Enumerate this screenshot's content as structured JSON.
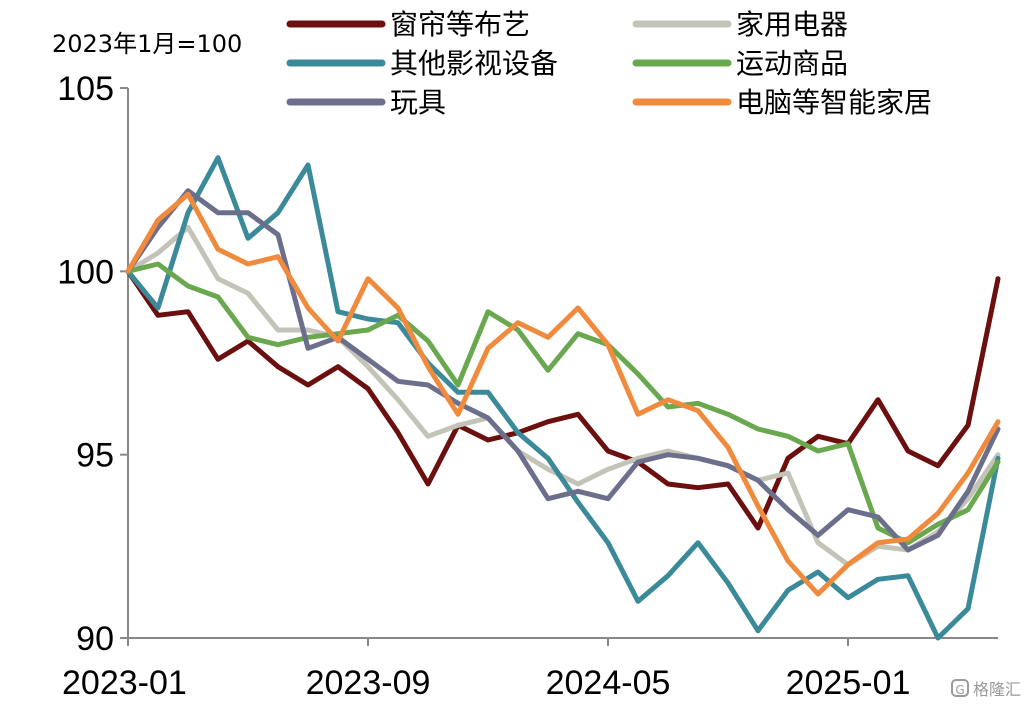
{
  "chart_data": {
    "type": "line",
    "unit_note": "2023年1月=100",
    "ylim": [
      90,
      105
    ],
    "yticks": [
      90,
      95,
      100,
      105
    ],
    "x_tick_labels": [
      "2023-01",
      "2023-09",
      "2024-05",
      "2025-01"
    ],
    "x_tick_indices": [
      0,
      8,
      16,
      24
    ],
    "n_points": 30,
    "legend_position": "top",
    "grid": false,
    "series": [
      {
        "name": "窗帘等布艺",
        "color": "#6b0f0f",
        "values": [
          100,
          98.8,
          98.9,
          97.6,
          98.1,
          97.4,
          96.9,
          97.4,
          96.8,
          95.6,
          94.2,
          95.8,
          95.4,
          95.6,
          95.9,
          96.1,
          95.1,
          94.8,
          94.2,
          94.1,
          94.2,
          93.0,
          94.9,
          95.5,
          95.3,
          96.5,
          95.1,
          94.7,
          95.8,
          99.8
        ]
      },
      {
        "name": "家用电器",
        "color": "#c4c3b8",
        "values": [
          100,
          100.5,
          101.2,
          99.8,
          99.4,
          98.4,
          98.4,
          98.2,
          97.4,
          96.5,
          95.5,
          95.8,
          96.0,
          95.1,
          94.6,
          94.2,
          94.6,
          94.9,
          95.1,
          94.9,
          94.7,
          94.3,
          94.5,
          92.6,
          92.0,
          92.5,
          92.4,
          92.9,
          93.8,
          95.0
        ]
      },
      {
        "name": "其他影视设备",
        "color": "#3b8a9a",
        "values": [
          100,
          99.0,
          101.6,
          103.1,
          100.9,
          101.6,
          102.9,
          98.9,
          98.7,
          98.6,
          97.5,
          96.7,
          96.7,
          95.6,
          94.9,
          93.7,
          92.6,
          91.0,
          91.7,
          92.6,
          91.5,
          90.2,
          91.3,
          91.8,
          91.1,
          91.6,
          91.7,
          90.0,
          90.8,
          94.9
        ]
      },
      {
        "name": "运动商品",
        "color": "#6aa84f",
        "values": [
          100,
          100.2,
          99.6,
          99.3,
          98.2,
          98.0,
          98.2,
          98.3,
          98.4,
          98.8,
          98.1,
          96.9,
          98.9,
          98.4,
          97.3,
          98.3,
          98.0,
          97.2,
          96.3,
          96.4,
          96.1,
          95.7,
          95.5,
          95.1,
          95.3,
          93.0,
          92.6,
          93.1,
          93.5,
          94.8
        ]
      },
      {
        "name": "玩具",
        "color": "#6c6f8c",
        "values": [
          100,
          101.2,
          102.2,
          101.6,
          101.6,
          101.0,
          97.9,
          98.2,
          97.6,
          97.0,
          96.9,
          96.4,
          96.0,
          95.1,
          93.8,
          94.0,
          93.8,
          94.8,
          95.0,
          94.9,
          94.7,
          94.3,
          93.5,
          92.8,
          93.5,
          93.3,
          92.4,
          92.8,
          94.0,
          95.7
        ]
      },
      {
        "name": "电脑等智能家居",
        "color": "#f08a3c",
        "values": [
          100,
          101.4,
          102.1,
          100.6,
          100.2,
          100.4,
          99.0,
          98.1,
          99.8,
          99.0,
          97.4,
          96.1,
          97.9,
          98.6,
          98.2,
          99.0,
          98.0,
          96.1,
          96.5,
          96.2,
          95.2,
          93.6,
          92.1,
          91.2,
          92.0,
          92.6,
          92.7,
          93.4,
          94.5,
          95.9
        ]
      }
    ]
  },
  "watermark": {
    "icon": "G",
    "text": "格隆汇"
  }
}
